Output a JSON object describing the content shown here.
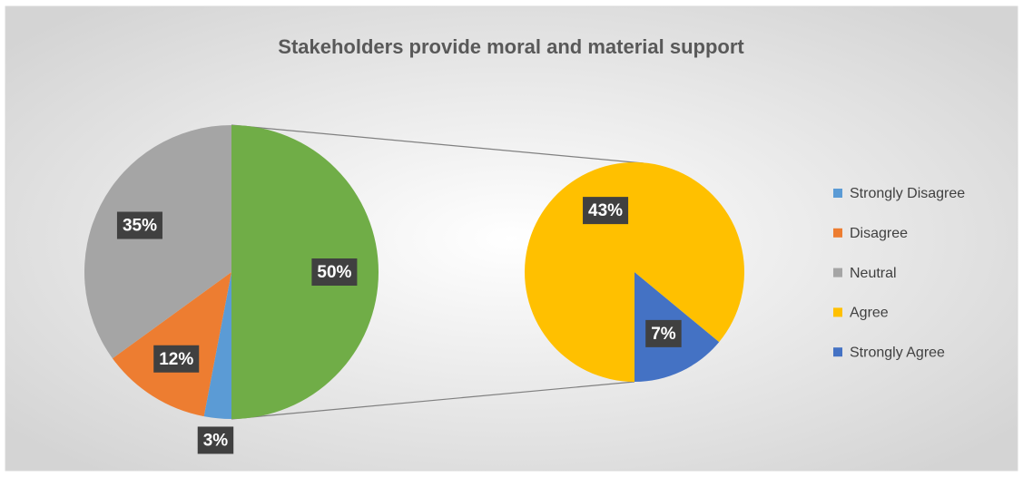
{
  "chart_data": {
    "type": "pie",
    "title": "Stakeholders provide moral and material support",
    "categories": [
      "Strongly Disagree",
      "Disagree",
      "Neutral",
      "Agree",
      "Strongly Agree"
    ],
    "values": [
      3,
      12,
      35,
      43,
      7
    ],
    "value_labels": [
      "3%",
      "12%",
      "35%",
      "43%",
      "7%"
    ],
    "colors": [
      "#5b9bd5",
      "#ed7d31",
      "#a5a5a5",
      "#ffc000",
      "#4472c4"
    ],
    "split_count": 2,
    "other_value": 50,
    "other_value_label": "50%",
    "other_color": "#70ad47",
    "legend": "right"
  }
}
